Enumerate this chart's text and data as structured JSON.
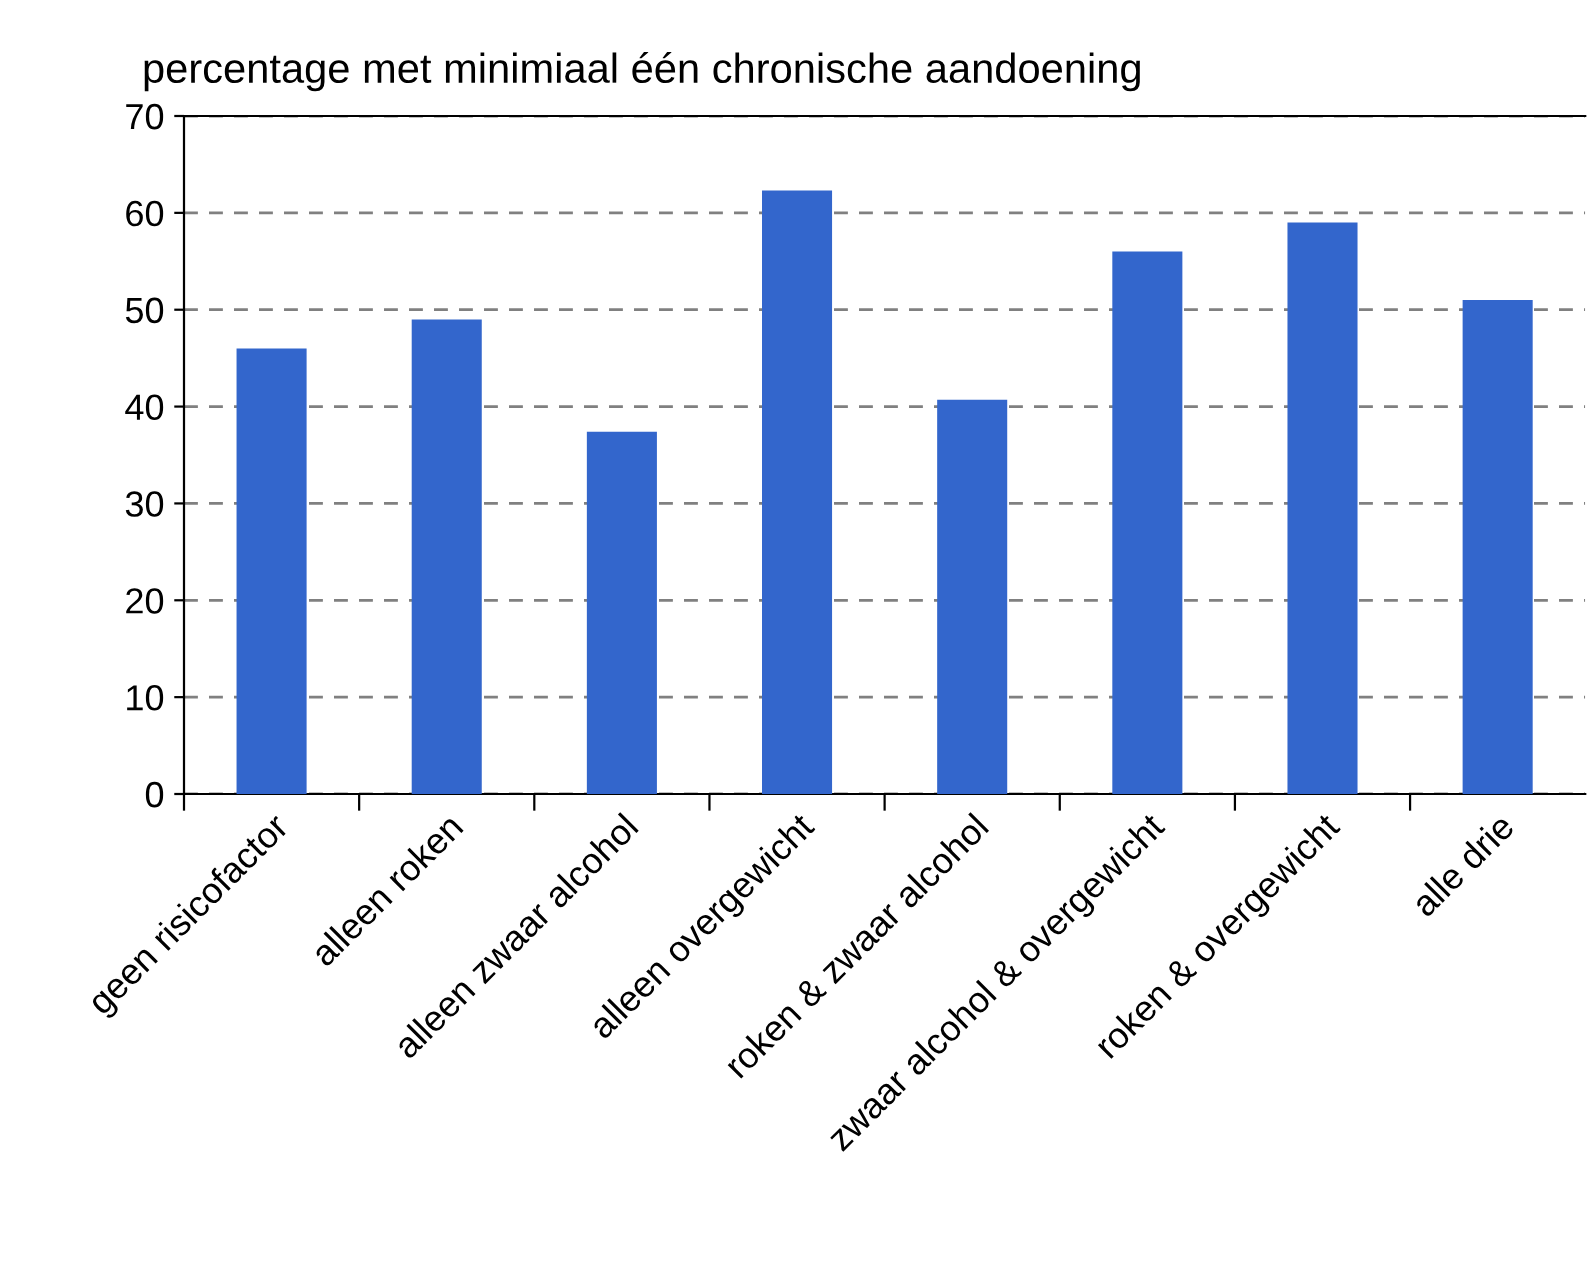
{
  "chart_data": {
    "type": "bar",
    "title": "percentage met minimiaal één chronische aandoening",
    "categories": [
      "geen risicofactor",
      "alleen roken",
      "alleen zwaar alcohol",
      "alleen overgewicht",
      "roken & zwaar alcohol",
      "zwaar alcohol & overgewicht",
      "roken & overgewicht",
      "alle drie"
    ],
    "values": [
      46,
      49,
      37.4,
      62.3,
      40.7,
      56,
      59,
      51
    ],
    "color": "#3366cc",
    "ylim": [
      0,
      70
    ],
    "yticks": [
      0,
      10,
      20,
      30,
      40,
      50,
      60,
      70
    ],
    "grid": "y"
  }
}
